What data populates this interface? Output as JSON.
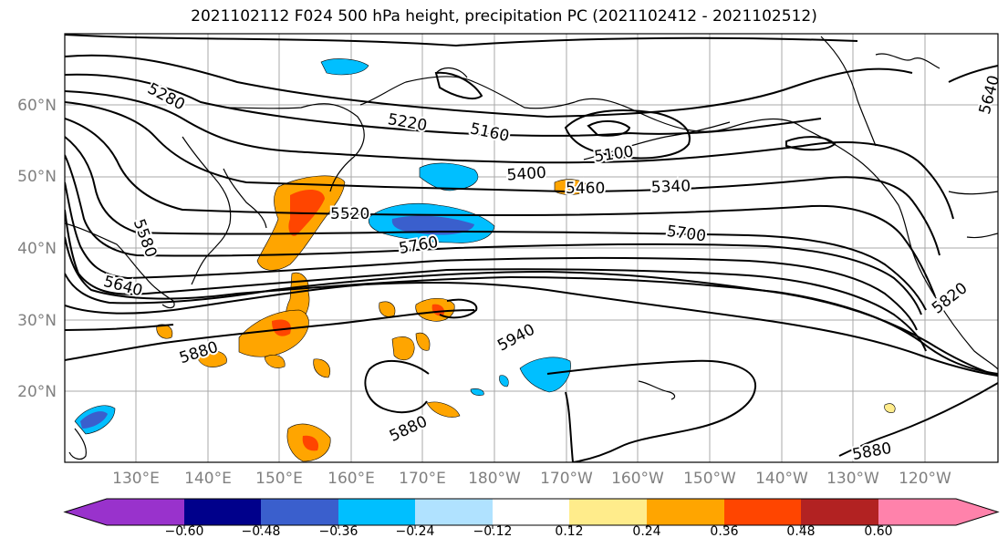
{
  "title": "2021102112 F024 500 hPa height, precipitation PC (2021102412 - 2021102512)",
  "lat_labels": [
    "20°N",
    "30°N",
    "40°N",
    "50°N",
    "60°N"
  ],
  "lon_labels": [
    "130°E",
    "140°E",
    "150°E",
    "160°E",
    "170°E",
    "180°W",
    "170°W",
    "160°W",
    "150°W",
    "140°W",
    "130°W",
    "120°W"
  ],
  "colorbar": {
    "colors": [
      "#9932cc",
      "#00008b",
      "#3a5fcd",
      "#00bfff",
      "#b0e2ff",
      "#ffffff",
      "#ffec8b",
      "#ffa500",
      "#ff4500",
      "#b22222",
      "#ff82ab"
    ],
    "tick_labels": [
      "−0.60",
      "−0.48",
      "−0.36",
      "−0.24",
      "−0.12",
      "0.12",
      "0.24",
      "0.36",
      "0.48",
      "0.60"
    ]
  },
  "contour_labels": [
    "5280",
    "5220",
    "5160",
    "5100",
    "5400",
    "5460",
    "5340",
    "5520",
    "5760",
    "5700",
    "5580",
    "5640",
    "5880",
    "5940",
    "5880",
    "5880",
    "5820",
    "5640"
  ]
}
